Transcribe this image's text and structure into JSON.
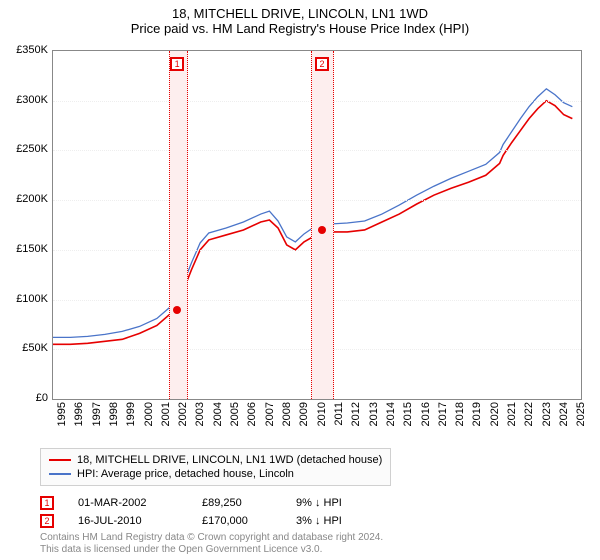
{
  "title": "18, MITCHELL DRIVE, LINCOLN, LN1 1WD",
  "subtitle": "Price paid vs. HM Land Registry's House Price Index (HPI)",
  "chart": {
    "type": "line",
    "background_color": "#ffffff",
    "border_color": "#888888",
    "grid_color": "#eeeeee",
    "x": {
      "start": 1995,
      "end": 2025.5,
      "ticks": [
        1995,
        1996,
        1997,
        1998,
        1999,
        2000,
        2001,
        2002,
        2003,
        2004,
        2005,
        2006,
        2007,
        2008,
        2009,
        2010,
        2011,
        2012,
        2013,
        2014,
        2015,
        2016,
        2017,
        2018,
        2019,
        2020,
        2021,
        2022,
        2023,
        2024,
        2025
      ]
    },
    "y": {
      "min": 0,
      "max": 350000,
      "ticks": [
        {
          "v": 0,
          "l": "£0"
        },
        {
          "v": 50000,
          "l": "£50K"
        },
        {
          "v": 100000,
          "l": "£100K"
        },
        {
          "v": 150000,
          "l": "£150K"
        },
        {
          "v": 200000,
          "l": "£200K"
        },
        {
          "v": 250000,
          "l": "£250K"
        },
        {
          "v": 300000,
          "l": "£300K"
        },
        {
          "v": 350000,
          "l": "£350K"
        }
      ]
    },
    "series": [
      {
        "name": "18, MITCHELL DRIVE, LINCOLN, LN1 1WD (detached house)",
        "color": "#e60000",
        "line_width": 1.6,
        "points": [
          [
            1995,
            55000
          ],
          [
            1996,
            55000
          ],
          [
            1997,
            56000
          ],
          [
            1998,
            58000
          ],
          [
            1999,
            60000
          ],
          [
            2000,
            66000
          ],
          [
            2001,
            74000
          ],
          [
            2002,
            89000
          ],
          [
            2002.5,
            108000
          ],
          [
            2003,
            130000
          ],
          [
            2003.5,
            150000
          ],
          [
            2004,
            160000
          ],
          [
            2005,
            165000
          ],
          [
            2006,
            170000
          ],
          [
            2007,
            178000
          ],
          [
            2007.5,
            180000
          ],
          [
            2008,
            172000
          ],
          [
            2008.5,
            155000
          ],
          [
            2009,
            150000
          ],
          [
            2009.5,
            158000
          ],
          [
            2010,
            163000
          ],
          [
            2010.5,
            170000
          ],
          [
            2011,
            168000
          ],
          [
            2012,
            168000
          ],
          [
            2013,
            170000
          ],
          [
            2014,
            178000
          ],
          [
            2015,
            186000
          ],
          [
            2016,
            196000
          ],
          [
            2017,
            205000
          ],
          [
            2018,
            212000
          ],
          [
            2019,
            218000
          ],
          [
            2020,
            225000
          ],
          [
            2020.8,
            237000
          ],
          [
            2021,
            245000
          ],
          [
            2021.5,
            258000
          ],
          [
            2022,
            270000
          ],
          [
            2022.5,
            282000
          ],
          [
            2023,
            292000
          ],
          [
            2023.5,
            300000
          ],
          [
            2024,
            295000
          ],
          [
            2024.5,
            286000
          ],
          [
            2025,
            282000
          ]
        ]
      },
      {
        "name": "HPI: Average price, detached house, Lincoln",
        "color": "#4a74c9",
        "line_width": 1.3,
        "points": [
          [
            1995,
            62000
          ],
          [
            1996,
            62000
          ],
          [
            1997,
            63000
          ],
          [
            1998,
            65000
          ],
          [
            1999,
            68000
          ],
          [
            2000,
            73000
          ],
          [
            2001,
            81000
          ],
          [
            2002,
            96000
          ],
          [
            2002.5,
            115000
          ],
          [
            2003,
            137000
          ],
          [
            2003.5,
            157000
          ],
          [
            2004,
            167000
          ],
          [
            2005,
            172000
          ],
          [
            2006,
            178000
          ],
          [
            2007,
            186000
          ],
          [
            2007.5,
            189000
          ],
          [
            2008,
            179000
          ],
          [
            2008.5,
            163000
          ],
          [
            2009,
            158000
          ],
          [
            2009.5,
            166000
          ],
          [
            2010,
            172000
          ],
          [
            2010.5,
            179000
          ],
          [
            2011,
            176000
          ],
          [
            2012,
            177000
          ],
          [
            2013,
            179000
          ],
          [
            2014,
            186000
          ],
          [
            2015,
            195000
          ],
          [
            2016,
            205000
          ],
          [
            2017,
            214000
          ],
          [
            2018,
            222000
          ],
          [
            2019,
            229000
          ],
          [
            2020,
            236000
          ],
          [
            2020.8,
            248000
          ],
          [
            2021,
            256000
          ],
          [
            2021.5,
            269000
          ],
          [
            2022,
            282000
          ],
          [
            2022.5,
            294000
          ],
          [
            2023,
            304000
          ],
          [
            2023.5,
            312000
          ],
          [
            2024,
            306000
          ],
          [
            2024.5,
            298000
          ],
          [
            2025,
            294000
          ]
        ]
      }
    ],
    "flags": [
      {
        "n": "1",
        "x": 2002.17,
        "band_start": 2001.7,
        "band_end": 2002.7,
        "color": "#e60000",
        "band_fill": "#fdeeee"
      },
      {
        "n": "2",
        "x": 2010.54,
        "band_start": 2009.9,
        "band_end": 2011.1,
        "color": "#e60000",
        "band_fill": "#fdeeee"
      }
    ],
    "markers": [
      {
        "x": 2002.17,
        "y": 89250,
        "color": "#e60000"
      },
      {
        "x": 2010.54,
        "y": 170000,
        "color": "#e60000"
      }
    ]
  },
  "legend": {
    "s1": "18, MITCHELL DRIVE, LINCOLN, LN1 1WD (detached house)",
    "s2": "HPI: Average price, detached house, Lincoln"
  },
  "transactions": [
    {
      "n": "1",
      "date": "01-MAR-2002",
      "price": "£89,250",
      "hpi": "9% ↓ HPI",
      "color": "#e60000"
    },
    {
      "n": "2",
      "date": "16-JUL-2010",
      "price": "£170,000",
      "hpi": "3% ↓ HPI",
      "color": "#e60000"
    }
  ],
  "footer": {
    "l1": "Contains HM Land Registry data © Crown copyright and database right 2024.",
    "l2": "This data is licensed under the Open Government Licence v3.0."
  }
}
